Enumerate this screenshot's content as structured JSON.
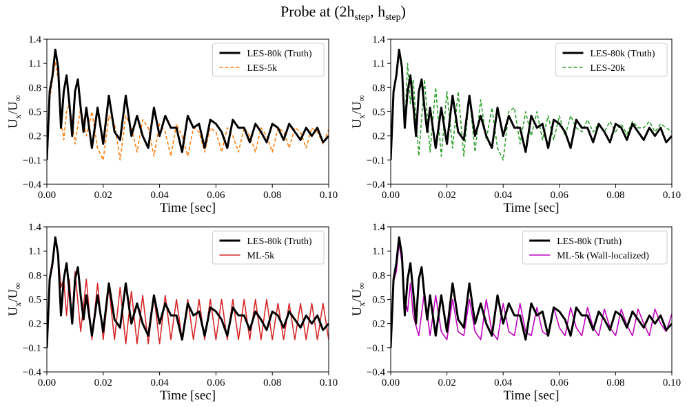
{
  "figure": {
    "title_main": "Probe at (2h",
    "title_sub1": "step",
    "title_mid": ", h",
    "title_sub2": "step",
    "title_end": ")"
  },
  "shared": {
    "xlabel": "Time [sec]",
    "ylabel_main": "U",
    "ylabel_sub1": "x",
    "ylabel_slash": "/U",
    "ylabel_sub2": "∞",
    "xlim": [
      0.0,
      0.1
    ],
    "ylim": [
      -0.4,
      1.4
    ],
    "xticks": [
      "0.00",
      "0.02",
      "0.04",
      "0.06",
      "0.08",
      "0.10"
    ],
    "yticks": [
      "−0.4",
      "−0.1",
      "0.2",
      "0.5",
      "0.8",
      "1.1",
      "1.4"
    ],
    "truth_color": "#000000"
  },
  "chart_data": [
    {
      "type": "line",
      "title": "",
      "xlabel": "Time [sec]",
      "ylabel": "Ux/U∞",
      "xlim": [
        0.0,
        0.1
      ],
      "ylim": [
        -0.4,
        1.4
      ],
      "grid": false,
      "legend_position": "top-right",
      "series": [
        {
          "name": "LES-80k (Truth)",
          "style": "solid-thick",
          "color": "#000000",
          "x": [
            0.0,
            0.001,
            0.002,
            0.003,
            0.004,
            0.005,
            0.006,
            0.007,
            0.008,
            0.009,
            0.01,
            0.011,
            0.012,
            0.013,
            0.014,
            0.016,
            0.018,
            0.02,
            0.022,
            0.024,
            0.026,
            0.028,
            0.03,
            0.032,
            0.034,
            0.036,
            0.038,
            0.04,
            0.042,
            0.044,
            0.046,
            0.048,
            0.05,
            0.052,
            0.054,
            0.056,
            0.058,
            0.06,
            0.062,
            0.064,
            0.066,
            0.068,
            0.07,
            0.072,
            0.074,
            0.076,
            0.078,
            0.08,
            0.082,
            0.084,
            0.086,
            0.088,
            0.09,
            0.092,
            0.094,
            0.096,
            0.098,
            0.1
          ],
          "y": [
            -0.1,
            0.75,
            0.95,
            1.27,
            1.05,
            0.3,
            0.75,
            0.95,
            0.6,
            0.2,
            0.75,
            0.9,
            0.55,
            0.25,
            0.55,
            0.05,
            0.55,
            0.1,
            0.7,
            0.25,
            0.15,
            0.7,
            0.2,
            0.45,
            0.2,
            0.05,
            0.55,
            0.2,
            0.45,
            0.3,
            0.3,
            0.0,
            0.45,
            0.3,
            0.35,
            0.05,
            0.4,
            0.35,
            0.25,
            0.05,
            0.4,
            0.3,
            0.3,
            0.12,
            0.35,
            0.25,
            0.12,
            0.35,
            0.3,
            0.15,
            0.35,
            0.25,
            0.15,
            0.3,
            0.2,
            0.3,
            0.12,
            0.2
          ]
        },
        {
          "name": "LES-5k",
          "style": "dashed",
          "color": "#ff7f0e",
          "x": [
            0.0,
            0.001,
            0.002,
            0.003,
            0.004,
            0.005,
            0.006,
            0.007,
            0.008,
            0.01,
            0.012,
            0.014,
            0.016,
            0.018,
            0.02,
            0.022,
            0.024,
            0.026,
            0.028,
            0.03,
            0.032,
            0.034,
            0.036,
            0.038,
            0.04,
            0.042,
            0.044,
            0.046,
            0.048,
            0.05,
            0.052,
            0.054,
            0.056,
            0.058,
            0.06,
            0.062,
            0.064,
            0.066,
            0.068,
            0.07,
            0.072,
            0.074,
            0.076,
            0.078,
            0.08,
            0.082,
            0.084,
            0.086,
            0.088,
            0.09,
            0.092,
            0.094,
            0.096,
            0.098,
            0.1
          ],
          "y": [
            -0.1,
            0.65,
            0.9,
            1.12,
            0.9,
            0.4,
            0.15,
            0.5,
            0.6,
            0.1,
            0.55,
            0.2,
            0.5,
            0.05,
            -0.1,
            0.45,
            0.35,
            -0.1,
            0.45,
            0.3,
            0.0,
            0.4,
            0.3,
            -0.05,
            0.35,
            0.25,
            -0.05,
            0.35,
            0.2,
            -0.05,
            0.3,
            0.25,
            0.0,
            0.3,
            0.25,
            0.0,
            0.3,
            0.2,
            0.0,
            0.3,
            0.2,
            0.0,
            0.3,
            0.2,
            0.0,
            0.3,
            0.25,
            0.05,
            0.3,
            0.25,
            0.05,
            0.3,
            0.25,
            0.1,
            0.28
          ]
        }
      ]
    },
    {
      "type": "line",
      "title": "",
      "xlabel": "Time [sec]",
      "ylabel": "Ux/U∞",
      "xlim": [
        0.0,
        0.1
      ],
      "ylim": [
        -0.4,
        1.4
      ],
      "grid": false,
      "legend_position": "top-right",
      "series": [
        {
          "name": "LES-80k (Truth)",
          "style": "solid-thick",
          "color": "#000000",
          "x": [
            0.0,
            0.001,
            0.002,
            0.003,
            0.004,
            0.005,
            0.006,
            0.007,
            0.008,
            0.009,
            0.01,
            0.011,
            0.012,
            0.013,
            0.014,
            0.016,
            0.018,
            0.02,
            0.022,
            0.024,
            0.026,
            0.028,
            0.03,
            0.032,
            0.034,
            0.036,
            0.038,
            0.04,
            0.042,
            0.044,
            0.046,
            0.048,
            0.05,
            0.052,
            0.054,
            0.056,
            0.058,
            0.06,
            0.062,
            0.064,
            0.066,
            0.068,
            0.07,
            0.072,
            0.074,
            0.076,
            0.078,
            0.08,
            0.082,
            0.084,
            0.086,
            0.088,
            0.09,
            0.092,
            0.094,
            0.096,
            0.098,
            0.1
          ],
          "y": [
            -0.1,
            0.75,
            0.95,
            1.27,
            1.05,
            0.3,
            0.75,
            0.95,
            0.6,
            0.2,
            0.75,
            0.9,
            0.55,
            0.25,
            0.55,
            0.05,
            0.55,
            0.1,
            0.7,
            0.25,
            0.15,
            0.7,
            0.2,
            0.45,
            0.2,
            0.05,
            0.55,
            0.2,
            0.45,
            0.3,
            0.3,
            0.0,
            0.45,
            0.3,
            0.35,
            0.05,
            0.4,
            0.35,
            0.25,
            0.05,
            0.4,
            0.3,
            0.3,
            0.12,
            0.35,
            0.25,
            0.12,
            0.35,
            0.3,
            0.15,
            0.35,
            0.25,
            0.15,
            0.3,
            0.2,
            0.3,
            0.12,
            0.2
          ]
        },
        {
          "name": "LES-20k",
          "style": "dashed",
          "color": "#2ca02c",
          "x": [
            0.0,
            0.001,
            0.002,
            0.003,
            0.004,
            0.005,
            0.006,
            0.007,
            0.008,
            0.01,
            0.012,
            0.014,
            0.016,
            0.018,
            0.02,
            0.022,
            0.024,
            0.026,
            0.028,
            0.03,
            0.032,
            0.034,
            0.036,
            0.038,
            0.04,
            0.042,
            0.044,
            0.046,
            0.048,
            0.05,
            0.052,
            0.054,
            0.056,
            0.058,
            0.06,
            0.062,
            0.064,
            0.066,
            0.068,
            0.07,
            0.072,
            0.074,
            0.076,
            0.078,
            0.08,
            0.082,
            0.084,
            0.086,
            0.088,
            0.09,
            0.092,
            0.094,
            0.096,
            0.098,
            0.1
          ],
          "y": [
            -0.1,
            0.75,
            1.0,
            1.27,
            1.1,
            0.3,
            1.1,
            0.6,
            0.9,
            -0.05,
            0.9,
            0.0,
            0.8,
            -0.05,
            0.75,
            0.05,
            0.75,
            -0.05,
            0.7,
            0.0,
            0.65,
            0.15,
            0.55,
            0.05,
            -0.1,
            0.5,
            0.55,
            0.1,
            0.5,
            0.2,
            0.5,
            0.15,
            0.45,
            0.15,
            0.45,
            0.2,
            0.45,
            0.3,
            0.25,
            0.4,
            0.25,
            0.35,
            0.25,
            0.38,
            0.25,
            0.35,
            0.22,
            0.38,
            0.3,
            0.3,
            0.38,
            0.25,
            0.35,
            0.3,
            0.25
          ]
        }
      ]
    },
    {
      "type": "line",
      "title": "",
      "xlabel": "Time [sec]",
      "ylabel": "Ux/U∞",
      "xlim": [
        0.0,
        0.1
      ],
      "ylim": [
        -0.4,
        1.4
      ],
      "grid": false,
      "legend_position": "top-right",
      "series": [
        {
          "name": "LES-80k (Truth)",
          "style": "solid-thick",
          "color": "#000000",
          "x": [
            0.0,
            0.001,
            0.002,
            0.003,
            0.004,
            0.005,
            0.006,
            0.007,
            0.008,
            0.009,
            0.01,
            0.011,
            0.012,
            0.013,
            0.014,
            0.016,
            0.018,
            0.02,
            0.022,
            0.024,
            0.026,
            0.028,
            0.03,
            0.032,
            0.034,
            0.036,
            0.038,
            0.04,
            0.042,
            0.044,
            0.046,
            0.048,
            0.05,
            0.052,
            0.054,
            0.056,
            0.058,
            0.06,
            0.062,
            0.064,
            0.066,
            0.068,
            0.07,
            0.072,
            0.074,
            0.076,
            0.078,
            0.08,
            0.082,
            0.084,
            0.086,
            0.088,
            0.09,
            0.092,
            0.094,
            0.096,
            0.098,
            0.1
          ],
          "y": [
            -0.1,
            0.75,
            0.95,
            1.27,
            1.05,
            0.3,
            0.75,
            0.95,
            0.6,
            0.2,
            0.75,
            0.9,
            0.55,
            0.25,
            0.55,
            0.05,
            0.55,
            0.1,
            0.7,
            0.25,
            0.15,
            0.7,
            0.2,
            0.45,
            0.2,
            0.05,
            0.55,
            0.2,
            0.45,
            0.3,
            0.3,
            0.0,
            0.45,
            0.3,
            0.35,
            0.05,
            0.4,
            0.35,
            0.25,
            0.05,
            0.4,
            0.3,
            0.3,
            0.12,
            0.35,
            0.25,
            0.12,
            0.35,
            0.3,
            0.15,
            0.35,
            0.25,
            0.15,
            0.3,
            0.2,
            0.3,
            0.12,
            0.2
          ]
        },
        {
          "name": "ML-5k",
          "style": "solid",
          "color": "#d62728",
          "x": [
            0.0,
            0.001,
            0.002,
            0.003,
            0.004,
            0.005,
            0.006,
            0.007,
            0.008,
            0.009,
            0.01,
            0.012,
            0.014,
            0.016,
            0.018,
            0.02,
            0.022,
            0.024,
            0.026,
            0.028,
            0.03,
            0.032,
            0.034,
            0.036,
            0.038,
            0.04,
            0.042,
            0.044,
            0.046,
            0.048,
            0.05,
            0.052,
            0.054,
            0.056,
            0.058,
            0.06,
            0.062,
            0.064,
            0.066,
            0.068,
            0.07,
            0.072,
            0.074,
            0.076,
            0.078,
            0.08,
            0.082,
            0.084,
            0.086,
            0.088,
            0.09,
            0.092,
            0.094,
            0.096,
            0.098,
            0.1
          ],
          "y": [
            -0.1,
            0.75,
            0.9,
            1.25,
            1.05,
            0.65,
            0.75,
            0.3,
            0.75,
            0.2,
            0.85,
            0.1,
            0.75,
            0.0,
            0.7,
            0.0,
            0.65,
            0.0,
            0.65,
            -0.05,
            0.6,
            -0.05,
            0.55,
            -0.05,
            0.55,
            -0.05,
            0.55,
            0.0,
            0.5,
            0.0,
            0.5,
            0.0,
            0.5,
            0.0,
            0.5,
            0.0,
            0.5,
            0.0,
            0.5,
            0.0,
            0.5,
            0.0,
            0.5,
            0.0,
            0.5,
            0.0,
            0.45,
            0.0,
            0.45,
            0.0,
            0.45,
            0.0,
            0.45,
            0.0,
            0.45,
            0.0
          ]
        }
      ]
    },
    {
      "type": "line",
      "title": "",
      "xlabel": "Time [sec]",
      "ylabel": "Ux/U∞",
      "xlim": [
        0.0,
        0.1
      ],
      "ylim": [
        -0.4,
        1.4
      ],
      "grid": false,
      "legend_position": "top-right",
      "series": [
        {
          "name": "LES-80k (Truth)",
          "style": "solid-thick",
          "color": "#000000",
          "x": [
            0.0,
            0.001,
            0.002,
            0.003,
            0.004,
            0.005,
            0.006,
            0.007,
            0.008,
            0.009,
            0.01,
            0.011,
            0.012,
            0.013,
            0.014,
            0.016,
            0.018,
            0.02,
            0.022,
            0.024,
            0.026,
            0.028,
            0.03,
            0.032,
            0.034,
            0.036,
            0.038,
            0.04,
            0.042,
            0.044,
            0.046,
            0.048,
            0.05,
            0.052,
            0.054,
            0.056,
            0.058,
            0.06,
            0.062,
            0.064,
            0.066,
            0.068,
            0.07,
            0.072,
            0.074,
            0.076,
            0.078,
            0.08,
            0.082,
            0.084,
            0.086,
            0.088,
            0.09,
            0.092,
            0.094,
            0.096,
            0.098,
            0.1
          ],
          "y": [
            -0.1,
            0.75,
            0.95,
            1.27,
            1.05,
            0.3,
            0.75,
            0.95,
            0.6,
            0.2,
            0.75,
            0.9,
            0.55,
            0.25,
            0.55,
            0.05,
            0.55,
            0.1,
            0.7,
            0.25,
            0.15,
            0.7,
            0.2,
            0.45,
            0.2,
            0.05,
            0.55,
            0.2,
            0.45,
            0.3,
            0.3,
            0.0,
            0.45,
            0.3,
            0.35,
            0.05,
            0.4,
            0.35,
            0.25,
            0.05,
            0.4,
            0.3,
            0.3,
            0.12,
            0.35,
            0.25,
            0.12,
            0.35,
            0.3,
            0.15,
            0.35,
            0.25,
            0.15,
            0.3,
            0.2,
            0.3,
            0.12,
            0.2
          ]
        },
        {
          "name": "ML-5k (Wall-localized)",
          "style": "solid",
          "color": "#bf00bf",
          "x": [
            0.0,
            0.001,
            0.002,
            0.003,
            0.004,
            0.005,
            0.006,
            0.007,
            0.008,
            0.01,
            0.012,
            0.014,
            0.016,
            0.018,
            0.02,
            0.022,
            0.024,
            0.026,
            0.028,
            0.03,
            0.032,
            0.034,
            0.036,
            0.038,
            0.04,
            0.042,
            0.044,
            0.046,
            0.048,
            0.05,
            0.052,
            0.054,
            0.056,
            0.058,
            0.06,
            0.062,
            0.064,
            0.066,
            0.068,
            0.07,
            0.072,
            0.074,
            0.076,
            0.078,
            0.08,
            0.082,
            0.084,
            0.086,
            0.088,
            0.09,
            0.092,
            0.094,
            0.096,
            0.098,
            0.1
          ],
          "y": [
            -0.1,
            0.72,
            0.85,
            1.2,
            0.95,
            0.5,
            0.35,
            0.7,
            0.3,
            0.05,
            0.6,
            0.05,
            0.55,
            0.1,
            0.0,
            0.5,
            0.1,
            0.05,
            0.5,
            0.1,
            0.0,
            0.5,
            0.1,
            0.0,
            0.45,
            0.1,
            0.05,
            0.45,
            0.1,
            0.05,
            0.4,
            0.1,
            0.05,
            0.4,
            0.15,
            0.05,
            0.4,
            0.15,
            0.05,
            0.4,
            0.15,
            0.05,
            0.38,
            0.15,
            0.05,
            0.38,
            0.18,
            0.05,
            0.38,
            0.2,
            0.05,
            0.38,
            0.2,
            0.1,
            0.32
          ]
        }
      ]
    }
  ]
}
